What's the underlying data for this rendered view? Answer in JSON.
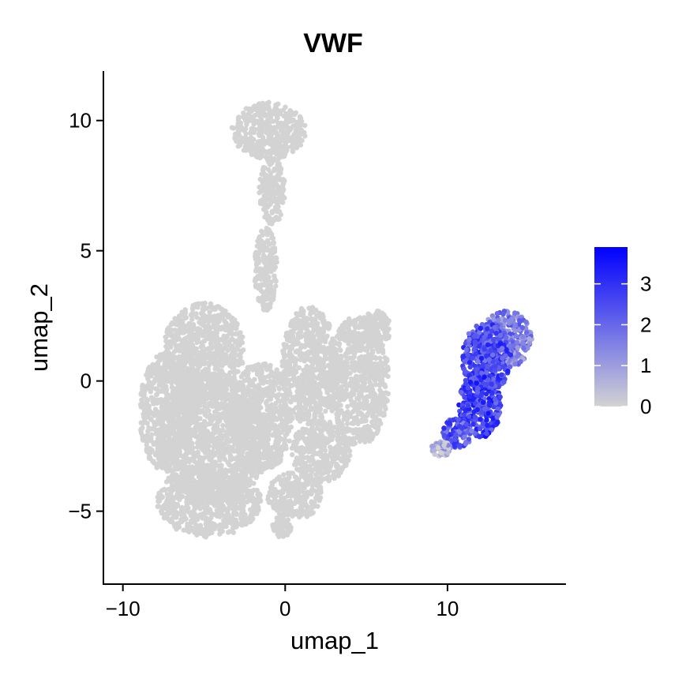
{
  "chart_data": {
    "type": "scatter",
    "title": "VWF",
    "xlabel": "umap_1",
    "ylabel": "umap_2",
    "xlim": [
      -11.2,
      17.3
    ],
    "ylim": [
      -7.8,
      11.9
    ],
    "x_ticks": [
      {
        "value": -10,
        "label": "−10"
      },
      {
        "value": 0,
        "label": "0"
      },
      {
        "value": 10,
        "label": "10"
      }
    ],
    "y_ticks": [
      {
        "value": -5,
        "label": "−5"
      },
      {
        "value": 0,
        "label": "0"
      },
      {
        "value": 5,
        "label": "5"
      },
      {
        "value": 10,
        "label": "10"
      }
    ],
    "grid": false,
    "legend": {
      "placement": "right",
      "type": "colorbar",
      "min": 0,
      "max": 3.9,
      "ticks": [
        {
          "value": 0,
          "label": "0"
        },
        {
          "value": 1,
          "label": "1"
        },
        {
          "value": 2,
          "label": "2"
        },
        {
          "value": 3,
          "label": "3"
        }
      ],
      "low_color": "#d3d3d3",
      "high_color": "#0000ff"
    },
    "point_color_default": "#d3d3d3",
    "clusters": [
      {
        "cx": -1.0,
        "cy": 9.6,
        "rx": 2.3,
        "ry": 1.1,
        "expr": 0
      },
      {
        "cx": -0.8,
        "cy": 7.3,
        "rx": 0.8,
        "ry": 1.3,
        "expr": 0
      },
      {
        "cx": -1.2,
        "cy": 4.3,
        "rx": 0.7,
        "ry": 1.6,
        "expr": 0
      },
      {
        "cx": -5.0,
        "cy": 1.2,
        "rx": 2.5,
        "ry": 1.8,
        "expr": 0
      },
      {
        "cx": -7.3,
        "cy": -1.2,
        "rx": 1.7,
        "ry": 2.3,
        "expr": 0
      },
      {
        "cx": -4.5,
        "cy": -2.2,
        "rx": 3.5,
        "ry": 2.4,
        "expr": 0
      },
      {
        "cx": -4.7,
        "cy": -4.6,
        "rx": 3.2,
        "ry": 1.4,
        "expr": 0
      },
      {
        "cx": -1.5,
        "cy": -1.4,
        "rx": 2.0,
        "ry": 2.1,
        "expr": 0
      },
      {
        "cx": 1.5,
        "cy": 0.6,
        "rx": 1.7,
        "ry": 2.3,
        "expr": 0
      },
      {
        "cx": 4.5,
        "cy": 0.0,
        "rx": 1.9,
        "ry": 2.5,
        "expr": 0
      },
      {
        "cx": 2.2,
        "cy": -2.7,
        "rx": 1.8,
        "ry": 1.2,
        "expr": 0
      },
      {
        "cx": 0.6,
        "cy": -4.4,
        "rx": 1.7,
        "ry": 0.9,
        "expr": 0
      },
      {
        "cx": -0.2,
        "cy": -5.6,
        "rx": 0.6,
        "ry": 0.4,
        "expr": 0
      },
      {
        "cx": 5.6,
        "cy": 2.0,
        "rx": 0.9,
        "ry": 0.7,
        "expr": 0
      },
      {
        "cx": 13.6,
        "cy": 1.6,
        "rx": 1.6,
        "ry": 1.1,
        "expr": 1.6
      },
      {
        "cx": 12.4,
        "cy": 0.9,
        "rx": 1.5,
        "ry": 1.4,
        "expr": 2.5
      },
      {
        "cx": 12.0,
        "cy": -0.9,
        "rx": 1.3,
        "ry": 1.3,
        "expr": 2.7
      },
      {
        "cx": 10.6,
        "cy": -2.0,
        "rx": 0.9,
        "ry": 0.6,
        "expr": 2.3
      },
      {
        "cx": 9.6,
        "cy": -2.6,
        "rx": 0.6,
        "ry": 0.3,
        "expr": 0.6
      }
    ]
  }
}
